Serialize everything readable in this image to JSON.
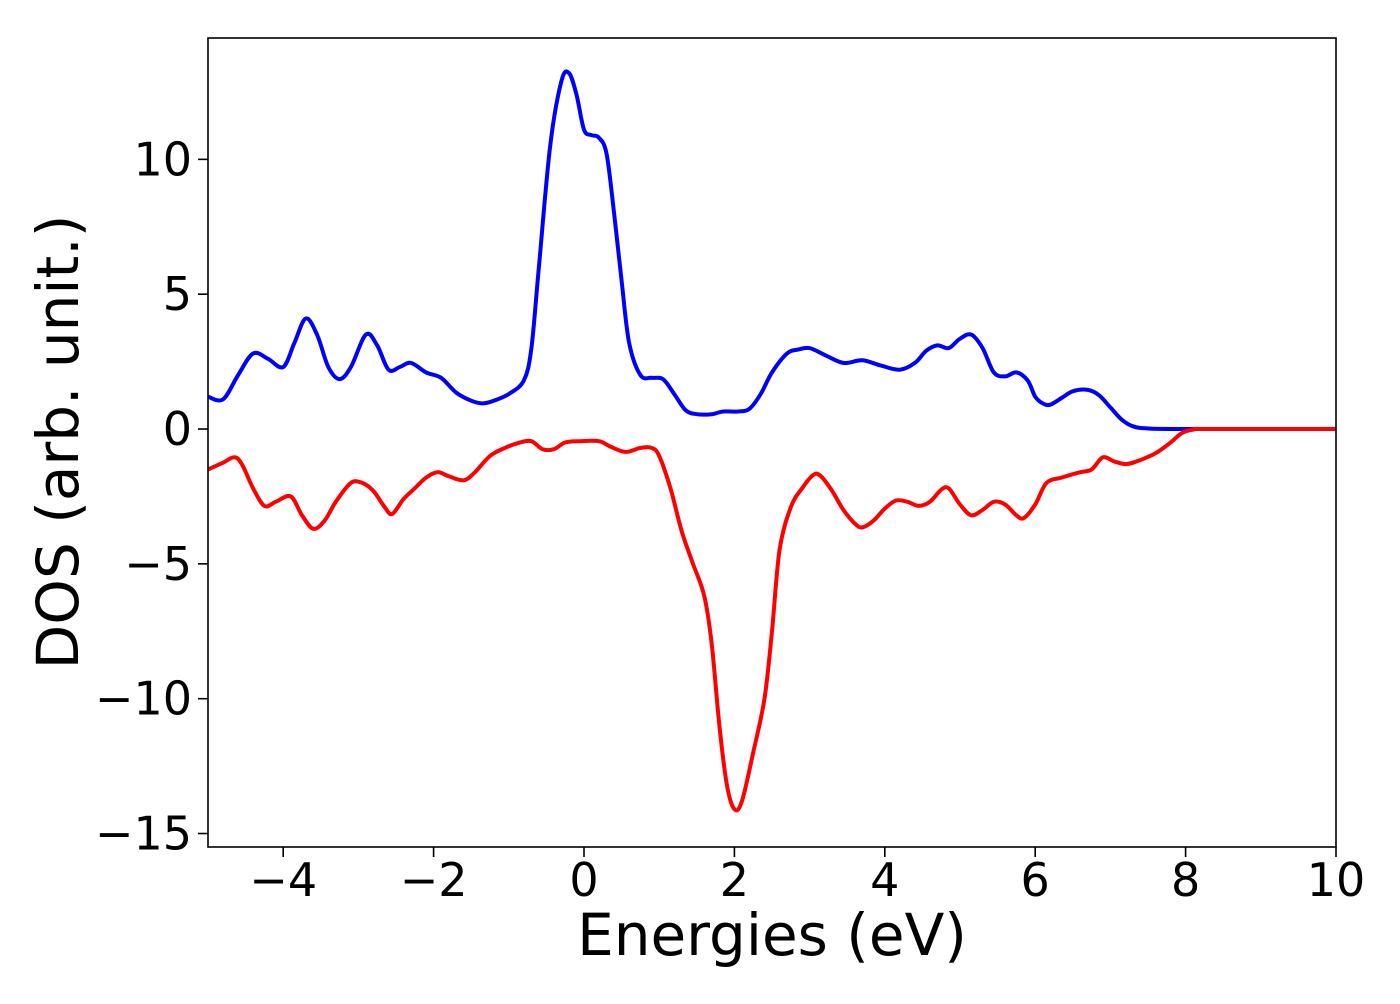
{
  "chart_data": {
    "type": "line",
    "title": "",
    "xlabel": "Energies (eV)",
    "ylabel": "DOS (arb. unit.)",
    "xlim": [
      -5,
      10
    ],
    "ylim": [
      -15.5,
      14.5
    ],
    "xticks": [
      -4,
      -2,
      0,
      2,
      4,
      6,
      8,
      10
    ],
    "xtick_labels": [
      "−4",
      "−2",
      "0",
      "2",
      "4",
      "6",
      "8",
      "10"
    ],
    "yticks": [
      -15,
      -10,
      -5,
      0,
      5,
      10
    ],
    "ytick_labels": [
      "−15",
      "−10",
      "−5",
      "0",
      "5",
      "10"
    ],
    "grid": false,
    "legend": "none",
    "series": [
      {
        "color": "#0000ff",
        "points": [
          [
            -5.0,
            1.2
          ],
          [
            -4.8,
            1.1
          ],
          [
            -4.6,
            2.0
          ],
          [
            -4.4,
            2.8
          ],
          [
            -4.2,
            2.6
          ],
          [
            -4.0,
            2.3
          ],
          [
            -3.85,
            3.2
          ],
          [
            -3.7,
            4.1
          ],
          [
            -3.55,
            3.5
          ],
          [
            -3.4,
            2.3
          ],
          [
            -3.25,
            1.85
          ],
          [
            -3.1,
            2.3
          ],
          [
            -2.9,
            3.5
          ],
          [
            -2.75,
            3.1
          ],
          [
            -2.6,
            2.2
          ],
          [
            -2.45,
            2.3
          ],
          [
            -2.3,
            2.45
          ],
          [
            -2.1,
            2.1
          ],
          [
            -1.9,
            1.9
          ],
          [
            -1.7,
            1.35
          ],
          [
            -1.5,
            1.05
          ],
          [
            -1.35,
            0.95
          ],
          [
            -1.2,
            1.05
          ],
          [
            -1.0,
            1.3
          ],
          [
            -0.8,
            1.8
          ],
          [
            -0.7,
            3.0
          ],
          [
            -0.6,
            6.0
          ],
          [
            -0.45,
            10.5
          ],
          [
            -0.3,
            12.9
          ],
          [
            -0.2,
            13.2
          ],
          [
            -0.1,
            12.4
          ],
          [
            0.0,
            11.1
          ],
          [
            0.1,
            10.9
          ],
          [
            0.2,
            10.8
          ],
          [
            0.3,
            10.2
          ],
          [
            0.4,
            8.0
          ],
          [
            0.5,
            5.5
          ],
          [
            0.6,
            3.2
          ],
          [
            0.75,
            2.0
          ],
          [
            0.9,
            1.9
          ],
          [
            1.05,
            1.85
          ],
          [
            1.2,
            1.3
          ],
          [
            1.35,
            0.7
          ],
          [
            1.5,
            0.55
          ],
          [
            1.7,
            0.55
          ],
          [
            1.85,
            0.65
          ],
          [
            2.05,
            0.65
          ],
          [
            2.2,
            0.75
          ],
          [
            2.35,
            1.3
          ],
          [
            2.5,
            2.1
          ],
          [
            2.7,
            2.8
          ],
          [
            2.85,
            2.95
          ],
          [
            3.0,
            3.0
          ],
          [
            3.2,
            2.75
          ],
          [
            3.45,
            2.45
          ],
          [
            3.7,
            2.55
          ],
          [
            3.95,
            2.35
          ],
          [
            4.2,
            2.2
          ],
          [
            4.4,
            2.45
          ],
          [
            4.55,
            2.9
          ],
          [
            4.7,
            3.1
          ],
          [
            4.85,
            3.0
          ],
          [
            5.0,
            3.35
          ],
          [
            5.15,
            3.5
          ],
          [
            5.3,
            3.0
          ],
          [
            5.45,
            2.1
          ],
          [
            5.6,
            1.95
          ],
          [
            5.75,
            2.1
          ],
          [
            5.9,
            1.8
          ],
          [
            6.0,
            1.2
          ],
          [
            6.1,
            0.95
          ],
          [
            6.2,
            0.9
          ],
          [
            6.35,
            1.15
          ],
          [
            6.5,
            1.4
          ],
          [
            6.7,
            1.45
          ],
          [
            6.85,
            1.25
          ],
          [
            7.0,
            0.8
          ],
          [
            7.15,
            0.35
          ],
          [
            7.3,
            0.1
          ],
          [
            7.5,
            0.02
          ],
          [
            8.0,
            0.0
          ],
          [
            10.0,
            0.0
          ]
        ]
      },
      {
        "color": "#ff0000",
        "points": [
          [
            -5.0,
            -1.5
          ],
          [
            -4.8,
            -1.25
          ],
          [
            -4.65,
            -1.05
          ],
          [
            -4.55,
            -1.3
          ],
          [
            -4.4,
            -2.2
          ],
          [
            -4.25,
            -2.85
          ],
          [
            -4.1,
            -2.7
          ],
          [
            -3.9,
            -2.5
          ],
          [
            -3.75,
            -3.2
          ],
          [
            -3.6,
            -3.7
          ],
          [
            -3.45,
            -3.4
          ],
          [
            -3.3,
            -2.7
          ],
          [
            -3.1,
            -2.0
          ],
          [
            -2.95,
            -2.0
          ],
          [
            -2.8,
            -2.3
          ],
          [
            -2.65,
            -2.9
          ],
          [
            -2.55,
            -3.15
          ],
          [
            -2.4,
            -2.6
          ],
          [
            -2.25,
            -2.2
          ],
          [
            -2.1,
            -1.8
          ],
          [
            -1.95,
            -1.6
          ],
          [
            -1.8,
            -1.75
          ],
          [
            -1.6,
            -1.9
          ],
          [
            -1.45,
            -1.6
          ],
          [
            -1.25,
            -1.0
          ],
          [
            -1.05,
            -0.7
          ],
          [
            -0.85,
            -0.5
          ],
          [
            -0.7,
            -0.45
          ],
          [
            -0.55,
            -0.75
          ],
          [
            -0.4,
            -0.75
          ],
          [
            -0.25,
            -0.5
          ],
          [
            -0.05,
            -0.45
          ],
          [
            0.2,
            -0.45
          ],
          [
            0.35,
            -0.65
          ],
          [
            0.55,
            -0.85
          ],
          [
            0.75,
            -0.7
          ],
          [
            0.9,
            -0.7
          ],
          [
            1.0,
            -1.0
          ],
          [
            1.15,
            -2.2
          ],
          [
            1.3,
            -3.8
          ],
          [
            1.45,
            -5.0
          ],
          [
            1.6,
            -6.2
          ],
          [
            1.7,
            -8.0
          ],
          [
            1.8,
            -11.0
          ],
          [
            1.9,
            -13.2
          ],
          [
            2.0,
            -14.1
          ],
          [
            2.1,
            -13.8
          ],
          [
            2.25,
            -12.0
          ],
          [
            2.4,
            -10.0
          ],
          [
            2.5,
            -7.5
          ],
          [
            2.6,
            -4.5
          ],
          [
            2.75,
            -2.9
          ],
          [
            2.9,
            -2.2
          ],
          [
            3.05,
            -1.7
          ],
          [
            3.15,
            -1.75
          ],
          [
            3.3,
            -2.3
          ],
          [
            3.45,
            -3.0
          ],
          [
            3.6,
            -3.5
          ],
          [
            3.7,
            -3.65
          ],
          [
            3.85,
            -3.4
          ],
          [
            4.0,
            -2.95
          ],
          [
            4.15,
            -2.65
          ],
          [
            4.3,
            -2.7
          ],
          [
            4.45,
            -2.85
          ],
          [
            4.6,
            -2.7
          ],
          [
            4.75,
            -2.25
          ],
          [
            4.85,
            -2.2
          ],
          [
            5.0,
            -2.8
          ],
          [
            5.15,
            -3.2
          ],
          [
            5.3,
            -3.0
          ],
          [
            5.45,
            -2.7
          ],
          [
            5.6,
            -2.8
          ],
          [
            5.75,
            -3.2
          ],
          [
            5.85,
            -3.3
          ],
          [
            6.0,
            -2.8
          ],
          [
            6.15,
            -2.0
          ],
          [
            6.35,
            -1.8
          ],
          [
            6.6,
            -1.6
          ],
          [
            6.75,
            -1.5
          ],
          [
            6.9,
            -1.05
          ],
          [
            7.05,
            -1.2
          ],
          [
            7.2,
            -1.3
          ],
          [
            7.35,
            -1.2
          ],
          [
            7.6,
            -0.9
          ],
          [
            7.8,
            -0.5
          ],
          [
            7.95,
            -0.15
          ],
          [
            8.1,
            -0.02
          ],
          [
            8.3,
            0.0
          ],
          [
            10.0,
            0.0
          ]
        ]
      }
    ]
  }
}
